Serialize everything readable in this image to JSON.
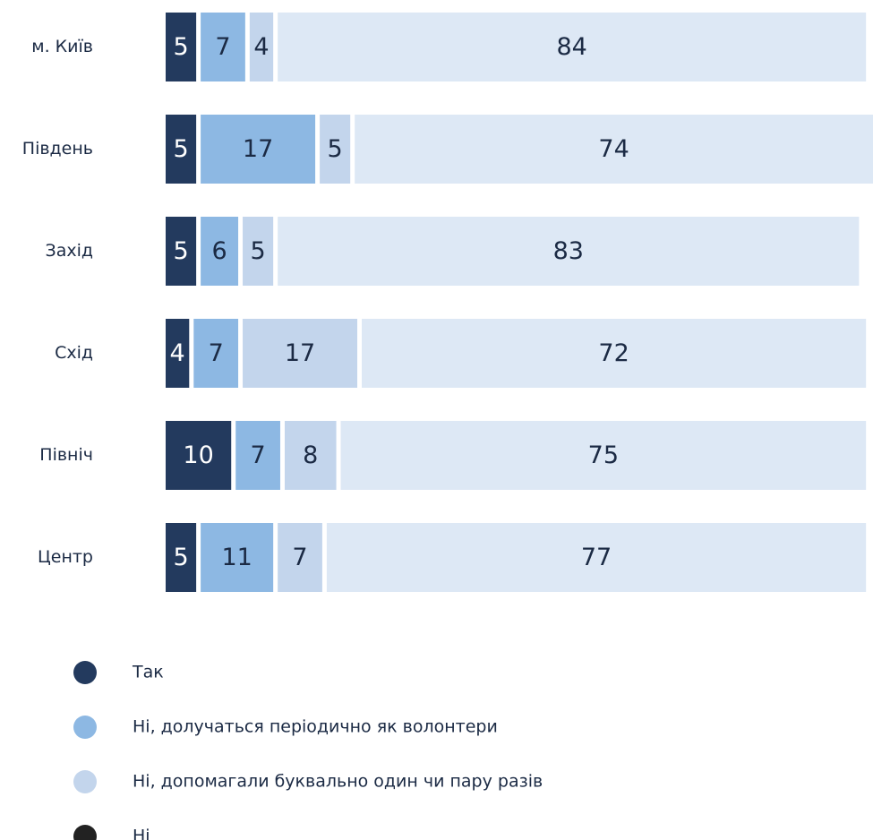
{
  "chart_data": {
    "type": "stacked-bar-horizontal",
    "categories": [
      "м. Київ",
      "Південь",
      "Захід",
      "Схід",
      "Північ",
      "Центр"
    ],
    "xlim": [
      0,
      101
    ],
    "series": [
      {
        "name": "Так",
        "color": "#233a5e",
        "legend_color": "#233a5e",
        "label_color": "#ffffff",
        "values": [
          5,
          5,
          5,
          4,
          10,
          5
        ]
      },
      {
        "name": "Ні, долучаться періодично як волонтери",
        "color": "#8db8e3",
        "legend_color": "#8db8e3",
        "label_color": "#1b2a44",
        "values": [
          7,
          17,
          6,
          7,
          7,
          11
        ]
      },
      {
        "name": "Ні, допомагали буквально один чи пару разів",
        "color": "#c3d5ec",
        "legend_color": "#c3d5ec",
        "label_color": "#1b2a44",
        "values": [
          4,
          5,
          5,
          17,
          8,
          7
        ]
      },
      {
        "name": "Ні",
        "color": "#dde8f5",
        "legend_color": "#222222",
        "label_color": "#1b2a44",
        "values": [
          84,
          74,
          83,
          72,
          75,
          77
        ]
      }
    ]
  }
}
